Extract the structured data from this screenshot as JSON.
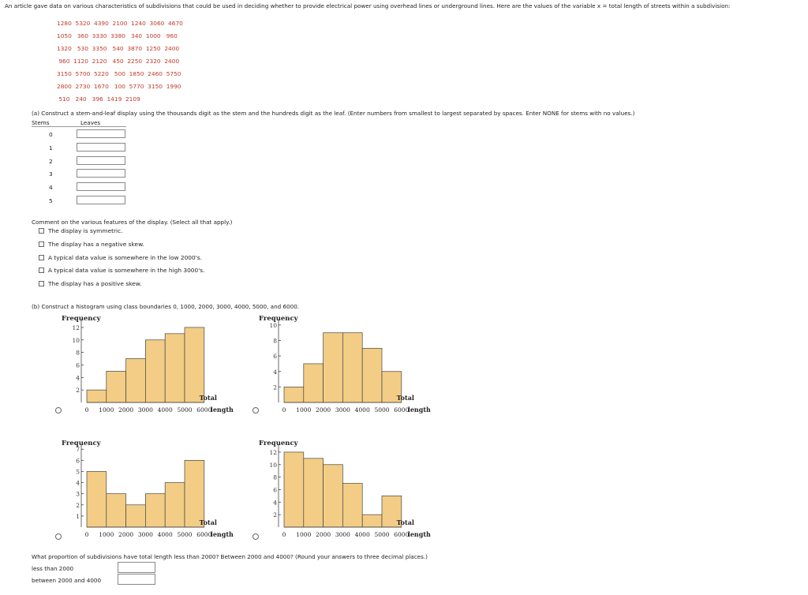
{
  "intro_text": "An article gave data on various characteristics of subdivisions that could be used in deciding whether to provide electrical power using overhead lines or underground lines. Here are the values of the variable x = total length of streets within a subdivision:",
  "data_rows": [
    "1280  5320  4390  2100  1240  3060  4670",
    "1050   360  3330  3380   340  1000   960",
    "1320   530  3350   540  3870  1250  2400",
    " 960  1120  2120   450  2250  2320  2400",
    "3150  5700  5220   500  1850  2460  5750",
    "2800  2730  1670   100  5770  3150  1990",
    " 510   240   396  1419  2109"
  ],
  "part_a": {
    "question": "(a) Construct a stem-and-leaf display using the thousands digit as the stem and the hundreds digit as the leaf. (Enter numbers from smallest to largest separated by spaces. Enter NONE for stems with no values.)",
    "stems_header": "Stems",
    "leaves_header": "Leaves",
    "stems": [
      "0",
      "1",
      "2",
      "3",
      "4",
      "5"
    ]
  },
  "comment": {
    "prompt": "Comment on the various features of the display. (Select all that apply.)",
    "options": [
      "The display is symmetric.",
      "The display has a negative skew.",
      "A typical data value is somewhere in the low 2000's.",
      "A typical data value is somewhere in the high 3000's.",
      "The display has a positive skew."
    ]
  },
  "part_b": {
    "question": "(b) Construct a histogram using class boundaries 0, 1000, 2000, 3000, 4000, 5000, and 6000."
  },
  "chart_data": [
    {
      "type": "bar",
      "title": "",
      "ylabel": "Frequency",
      "xlabel": "Total length",
      "xticks": [
        "0",
        "1000",
        "2000",
        "3000",
        "4000",
        "5000",
        "6000"
      ],
      "yticks": [
        "2",
        "4",
        "6",
        "8",
        "10",
        "12"
      ],
      "ylim": [
        0,
        13
      ],
      "bins": [
        [
          0,
          1000
        ],
        [
          1000,
          2000
        ],
        [
          2000,
          3000
        ],
        [
          3000,
          4000
        ],
        [
          4000,
          5000
        ],
        [
          5000,
          6000
        ]
      ],
      "values": [
        2,
        5,
        7,
        10,
        11,
        12
      ]
    },
    {
      "type": "bar",
      "title": "",
      "ylabel": "Frequency",
      "xlabel": "Total length",
      "xticks": [
        "0",
        "1000",
        "2000",
        "3000",
        "4000",
        "5000",
        "6000"
      ],
      "yticks": [
        "2",
        "4",
        "6",
        "8",
        "10"
      ],
      "ylim": [
        0,
        10.5
      ],
      "bins": [
        [
          0,
          1000
        ],
        [
          1000,
          2000
        ],
        [
          2000,
          3000
        ],
        [
          3000,
          4000
        ],
        [
          4000,
          5000
        ],
        [
          5000,
          6000
        ]
      ],
      "values": [
        2,
        5,
        9,
        9,
        7,
        4
      ]
    },
    {
      "type": "bar",
      "title": "",
      "ylabel": "Frequency",
      "xlabel": "Total length",
      "xticks": [
        "0",
        "1000",
        "2000",
        "3000",
        "4000",
        "5000",
        "6000"
      ],
      "yticks": [
        "1",
        "2",
        "3",
        "4",
        "5",
        "6",
        "7"
      ],
      "ylim": [
        0,
        7.3
      ],
      "bins": [
        [
          0,
          1000
        ],
        [
          1000,
          2000
        ],
        [
          2000,
          3000
        ],
        [
          3000,
          4000
        ],
        [
          4000,
          5000
        ],
        [
          5000,
          6000
        ]
      ],
      "values": [
        5,
        3,
        2,
        3,
        4,
        6
      ]
    },
    {
      "type": "bar",
      "title": "",
      "ylabel": "Frequency",
      "xlabel": "Total length",
      "xticks": [
        "0",
        "1000",
        "2000",
        "3000",
        "4000",
        "5000",
        "6000"
      ],
      "yticks": [
        "2",
        "4",
        "6",
        "8",
        "10",
        "12"
      ],
      "ylim": [
        0,
        13
      ],
      "bins": [
        [
          0,
          1000
        ],
        [
          1000,
          2000
        ],
        [
          2000,
          3000
        ],
        [
          3000,
          4000
        ],
        [
          4000,
          5000
        ],
        [
          5000,
          6000
        ]
      ],
      "values": [
        12,
        11,
        10,
        7,
        2,
        5
      ]
    }
  ],
  "proportion": {
    "question": "What proportion of subdivisions have total length less than 2000? Between 2000 and 4000? (Round your answers to three decimal places.)",
    "label_less": "less than 2000",
    "label_between": "between 2000 and 4000"
  },
  "colors": {
    "bar_fill": "#f3cd85",
    "bar_stroke": "#444444",
    "data_red": "#c0392b"
  }
}
